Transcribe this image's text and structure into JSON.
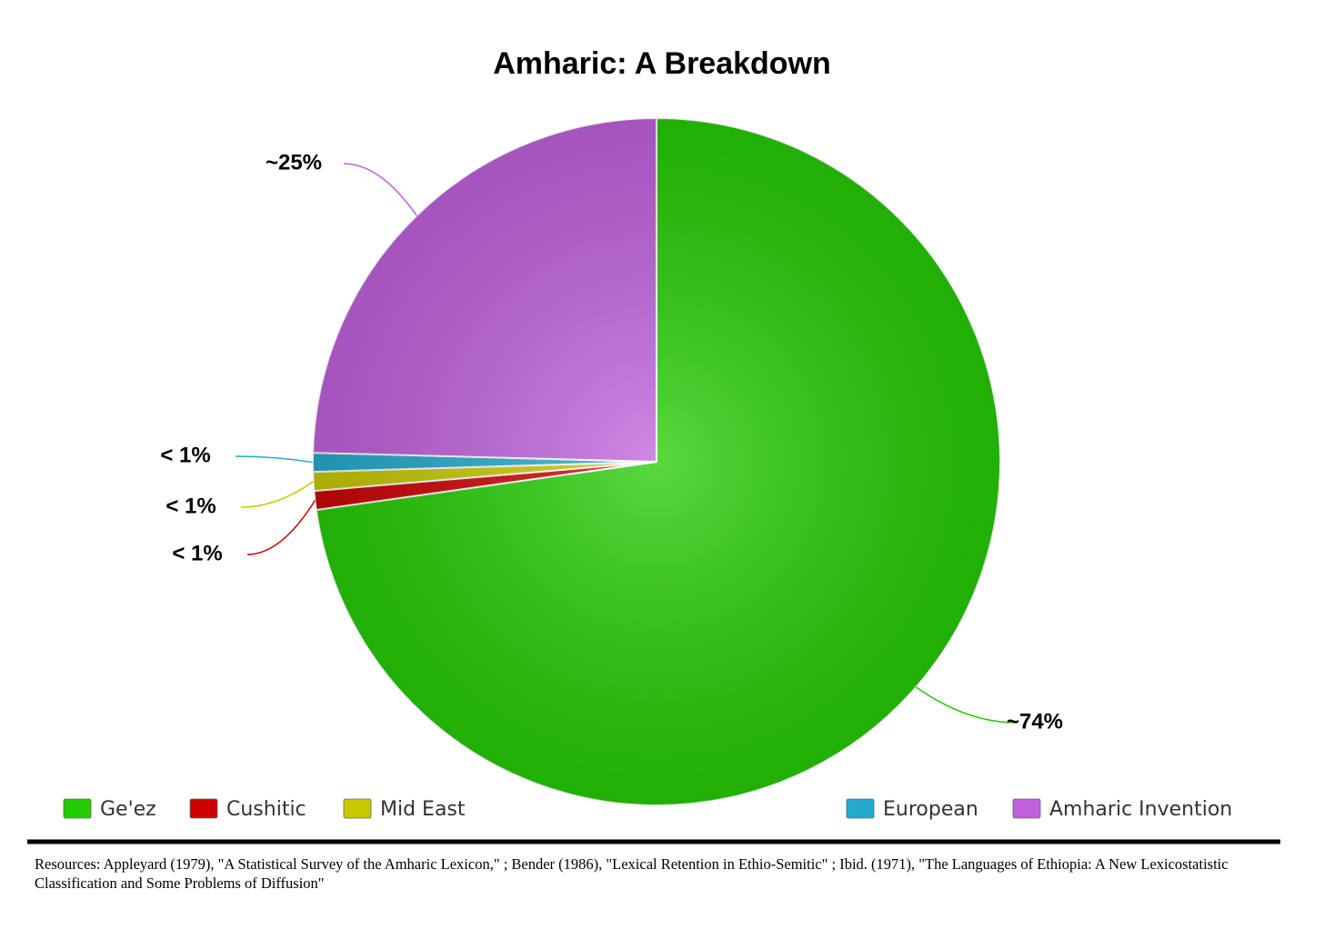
{
  "chart_data": {
    "type": "pie",
    "title": "Amharic: A Breakdown",
    "categories": [
      "Ge'ez",
      "Cushitic",
      "Mid East",
      "European",
      "Amharic Invention"
    ],
    "values": [
      74,
      0.9,
      0.9,
      0.9,
      25
    ],
    "value_labels": [
      "~74%",
      "< 1%",
      "< 1%",
      "< 1%",
      "~25%"
    ],
    "colors": [
      "#22cc00",
      "#cc0000",
      "#c8c800",
      "#22aacc",
      "#c060dd"
    ],
    "source": "Resources: Appleyard (1979), \"A Statistical Survey of the Amharic Lexicon,\" ; Bender (1986), \"Lexical Retention in Ethio-Semitic\" ; Ibid. (1971), \"The Languages of Ethiopia: A New Lexicostatistic Classification and Some Problems of Diffusion\""
  }
}
